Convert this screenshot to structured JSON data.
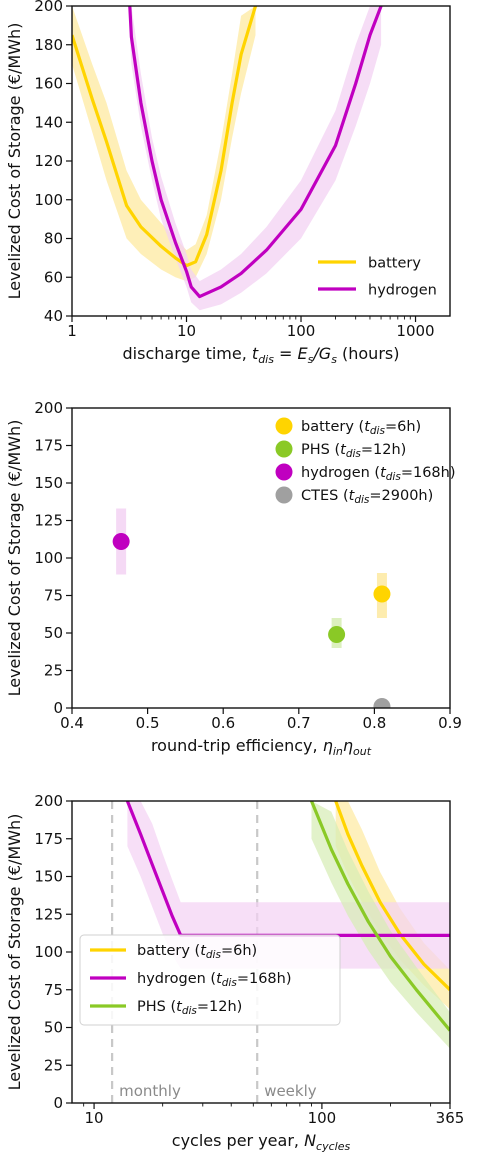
{
  "chart_data": [
    {
      "type": "line",
      "xscale": "log",
      "xlim": [
        1,
        2000
      ],
      "ylim": [
        40,
        200
      ],
      "xticks": [
        1,
        10,
        100,
        1000
      ],
      "xtick_labels": [
        "1",
        "10",
        "100",
        "1000"
      ],
      "yticks": [
        40,
        60,
        80,
        100,
        120,
        140,
        160,
        180,
        200
      ],
      "xlabel_parts": [
        "discharge time, ",
        "t",
        "dis",
        " = ",
        "E",
        "s",
        "/",
        "G",
        "s",
        " (hours)"
      ],
      "ylabel": "Levelized Cost of Storage (€/MWh)",
      "legend_position": "lower-right",
      "series": [
        {
          "name": "battery",
          "color": "#ffd400",
          "band_color": "#fde9a0",
          "x": [
            1,
            1.5,
            2,
            3,
            4,
            6,
            8,
            10,
            12,
            15,
            20,
            25,
            30,
            40
          ],
          "y": [
            185,
            152,
            130,
            97,
            86,
            76,
            70,
            66,
            68,
            82,
            115,
            150,
            175,
            200
          ],
          "lo": [
            170,
            135,
            110,
            80,
            72,
            64,
            60,
            58,
            60,
            72,
            100,
            132,
            155,
            185
          ],
          "hi": [
            200,
            170,
            150,
            115,
            100,
            88,
            80,
            74,
            77,
            92,
            130,
            165,
            195,
            200
          ]
        },
        {
          "name": "hydrogen",
          "color": "#c000c0",
          "band_color": "#f3d2f3",
          "x": [
            3.2,
            3.3,
            4,
            5,
            6,
            8,
            10,
            11,
            13,
            20,
            30,
            50,
            100,
            200,
            300,
            400,
            500
          ],
          "y": [
            200,
            184,
            150,
            120,
            100,
            78,
            63,
            55,
            50,
            55,
            62,
            74,
            95,
            128,
            160,
            185,
            200
          ],
          "lo": [
            185,
            170,
            138,
            110,
            90,
            70,
            55,
            47,
            43,
            46,
            52,
            62,
            80,
            110,
            138,
            160,
            180
          ],
          "hi": [
            200,
            200,
            165,
            132,
            112,
            88,
            72,
            64,
            58,
            64,
            72,
            86,
            110,
            146,
            180,
            200,
            200
          ]
        }
      ]
    },
    {
      "type": "scatter",
      "xlim": [
        0.4,
        0.9
      ],
      "ylim": [
        0,
        200
      ],
      "xticks": [
        0.4,
        0.5,
        0.6,
        0.7,
        0.8,
        0.9
      ],
      "xtick_labels": [
        "0.4",
        "0.5",
        "0.6",
        "0.7",
        "0.8",
        "0.9"
      ],
      "yticks": [
        0,
        25,
        50,
        75,
        100,
        125,
        150,
        175,
        200
      ],
      "xlabel_parts": [
        "round-trip efficiency, ",
        "η",
        "in",
        "η",
        "out"
      ],
      "ylabel": "Levelized Cost of Storage (€/MWh)",
      "legend_position": "upper-right",
      "points": [
        {
          "label_prefix": "battery (",
          "label_var": "t",
          "label_sub": "dis",
          "label_suffix": "=6h)",
          "x": 0.81,
          "y": 76,
          "lo": 60,
          "hi": 90,
          "color": "#ffd400",
          "band_color": "#fde9a0"
        },
        {
          "label_prefix": "PHS (",
          "label_var": "t",
          "label_sub": "dis",
          "label_suffix": "=12h)",
          "x": 0.75,
          "y": 49,
          "lo": 40,
          "hi": 60,
          "color": "#8ac926",
          "band_color": "#d6edb3"
        },
        {
          "label_prefix": "hydrogen (",
          "label_var": "t",
          "label_sub": "dis",
          "label_suffix": "=168h)",
          "x": 0.465,
          "y": 111,
          "lo": 89,
          "hi": 133,
          "color": "#c000c0",
          "band_color": "#f3d2f3"
        },
        {
          "label_prefix": "CTES (",
          "label_var": "t",
          "label_sub": "dis",
          "label_suffix": "=2900h)",
          "x": 0.81,
          "y": 1,
          "lo": 0,
          "hi": 2,
          "color": "#a0a0a0",
          "band_color": "#e0e0e0"
        }
      ]
    },
    {
      "type": "line",
      "xscale": "log",
      "xlim": [
        8,
        365
      ],
      "ylim": [
        0,
        200
      ],
      "xticks": [
        10,
        100,
        365
      ],
      "xtick_labels": [
        "10",
        "100",
        "365"
      ],
      "yticks": [
        0,
        25,
        50,
        75,
        100,
        125,
        150,
        175,
        200
      ],
      "xlabel_parts": [
        "cycles per year, ",
        "N",
        "cycles"
      ],
      "ylabel": "Levelized Cost of Storage (€/MWh)",
      "legend_position": "lower-left",
      "vlines": [
        {
          "x": 12,
          "label": "monthly"
        },
        {
          "x": 52,
          "label": "weekly"
        }
      ],
      "series": [
        {
          "name_prefix": "battery (",
          "name_var": "t",
          "name_sub": "dis",
          "name_suffix": "=6h)",
          "color": "#ffd400",
          "band_color": "#fde9a0",
          "x": [
            115,
            130,
            150,
            180,
            220,
            280,
            365
          ],
          "y": [
            200,
            178,
            157,
            133,
            112,
            92,
            75
          ],
          "lo": [
            170,
            151,
            133,
            113,
            95,
            78,
            62
          ],
          "hi": [
            200,
            200,
            181,
            153,
            129,
            106,
            88
          ]
        },
        {
          "name_prefix": "hydrogen (",
          "name_var": "t",
          "name_sub": "dis",
          "name_suffix": "=168h)",
          "color": "#c000c0",
          "band_color": "#f3d2f3",
          "x": [
            14,
            16,
            18,
            20,
            22,
            24,
            365
          ],
          "y": [
            200,
            178,
            158,
            140,
            124,
            111,
            111
          ],
          "lo": [
            170,
            150,
            130,
            112,
            98,
            89,
            89
          ],
          "hi": [
            200,
            200,
            185,
            165,
            148,
            133,
            133
          ]
        },
        {
          "name_prefix": "PHS (",
          "name_var": "t",
          "name_sub": "dis",
          "name_suffix": "=12h)",
          "color": "#8ac926",
          "band_color": "#d6edb3",
          "x": [
            90,
            110,
            130,
            160,
            200,
            260,
            365
          ],
          "y": [
            200,
            168,
            145,
            120,
            97,
            75,
            48
          ],
          "lo": [
            175,
            146,
            124,
            101,
            80,
            60,
            36
          ],
          "hi": [
            200,
            193,
            167,
            140,
            114,
            90,
            60
          ]
        }
      ]
    }
  ]
}
